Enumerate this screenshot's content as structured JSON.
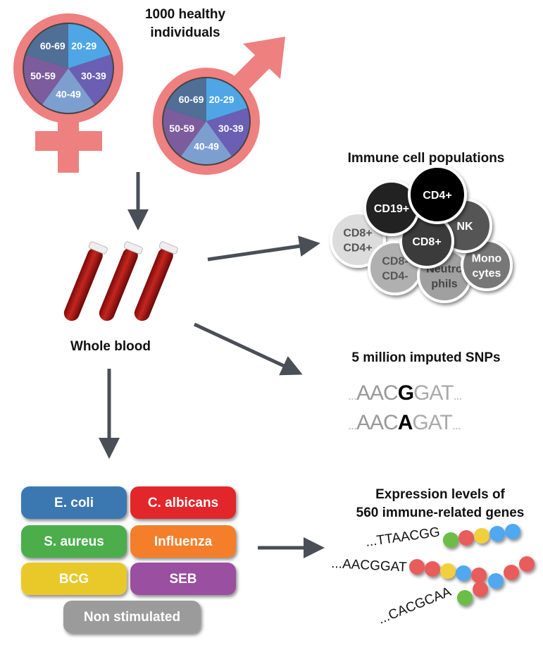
{
  "title": [
    "1000 healthy",
    "individuals"
  ],
  "age_groups": [
    "20-29",
    "30-39",
    "40-49",
    "50-59",
    "60-69"
  ],
  "age_colors": [
    "#4ea6e6",
    "#6a5fb3",
    "#7d9fd0",
    "#7c5c9c",
    "#4f6f97"
  ],
  "symbol_color": "#ee8080",
  "whole_blood": "Whole blood",
  "immune": {
    "title": "Immune cell populations",
    "cells": [
      {
        "label": [
          "CD8+",
          "CD4+"
        ],
        "color": "#dcdcdc",
        "text": "#555"
      },
      {
        "label": [
          "CD19+"
        ],
        "color": "#222222",
        "text": "#fff"
      },
      {
        "label": [
          "NK"
        ],
        "color": "#555555",
        "text": "#fff"
      },
      {
        "label": [
          "CD4+"
        ],
        "color": "#000000",
        "text": "#fff"
      },
      {
        "label": [
          "CD8+"
        ],
        "color": "#3a3a3a",
        "text": "#fff"
      },
      {
        "label": [
          "CD8-",
          "CD4-"
        ],
        "color": "#b0b0b0",
        "text": "#555"
      },
      {
        "label": [
          "Mono",
          "cytes"
        ],
        "color": "#777777",
        "text": "#fff"
      },
      {
        "label": [
          "Neutro",
          "phils"
        ],
        "color": "#a0a0a0",
        "text": "#444"
      }
    ]
  },
  "snps": {
    "title": "5 million imputed SNPs",
    "seq1": {
      "pre": "AAC",
      "snp": "G",
      "post": "GAT"
    },
    "seq2": {
      "pre": "AAC",
      "snp": "A",
      "post": "GAT"
    },
    "dots": "..."
  },
  "stimuli": [
    {
      "label": "E. coli",
      "color": "#3b78b1"
    },
    {
      "label": "C. albicans",
      "color": "#e2262c"
    },
    {
      "label": "S. aureus",
      "color": "#4cae4b"
    },
    {
      "label": "Influenza",
      "color": "#f57e2a"
    },
    {
      "label": "BCG",
      "color": "#e9c92c"
    },
    {
      "label": "SEB",
      "color": "#9a4fa0"
    },
    {
      "label": "Non stimulated",
      "color": "#9b9b9b"
    }
  ],
  "expression": {
    "title": [
      "Expression levels of",
      "560 immune-related genes"
    ],
    "sequences": [
      {
        "text": "...TTAACGG",
        "beads": [
          "#6cbd45",
          "#e85c5c",
          "#f2cf3c",
          "#4fa8f0",
          "#4fa8f0"
        ]
      },
      {
        "text": "...AACGGAT",
        "beads": [
          "#e85c5c",
          "#e85c5c",
          "#f2cf3c",
          "#4fa8f0",
          "#e85c5c"
        ]
      },
      {
        "text": "...CACGCAA",
        "beads": [
          "#6cbd45",
          "#e85c5c",
          "#4fa8f0",
          "#e85c5c",
          "#e85c5c"
        ]
      }
    ]
  }
}
